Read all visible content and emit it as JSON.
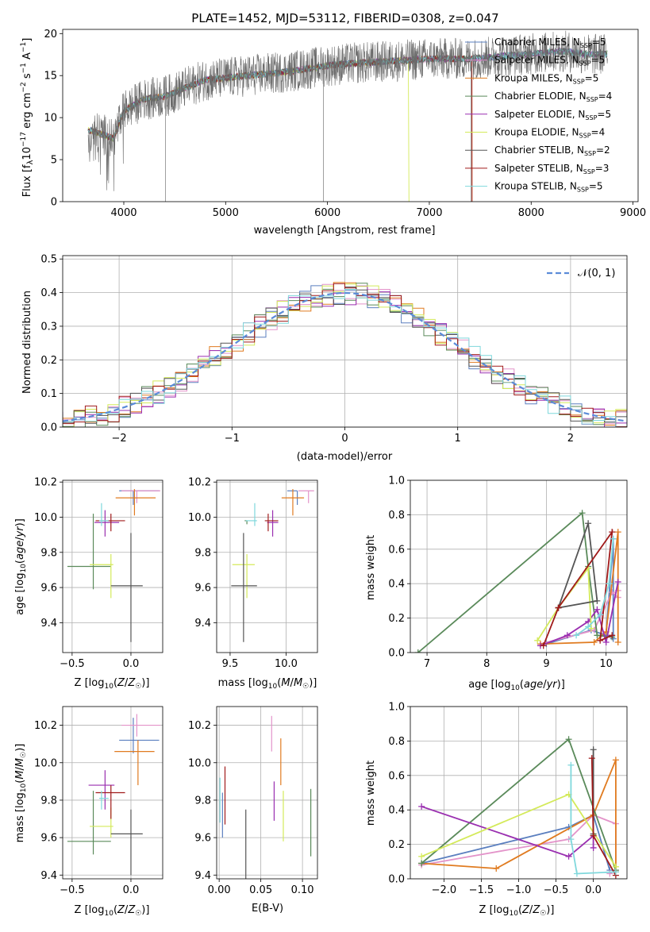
{
  "figure": {
    "title": "PLATE=1452, MJD=53112, FIBERID=0308, z=0.047"
  },
  "colors": {
    "Chabrier MILES": "#5b7fbf",
    "Salpeter MILES": "#e393c9",
    "Kroupa MILES": "#e07b20",
    "Chabrier ELODIE": "#5a8a5a",
    "Salpeter ELODIE": "#9a2fb0",
    "Kroupa ELODIE": "#d4ea5a",
    "Chabrier STELIB": "#555555",
    "Salpeter STELIB": "#a01a1a",
    "Kroupa STELIB": "#7fd8dc",
    "gauss": "#5b8bd8"
  },
  "chart_data": [
    {
      "id": "spectrum",
      "type": "line",
      "xlabel": "wavelength [Angstrom, rest frame]",
      "ylabel": "Flux [f_λ 10^-17 erg cm^-2 s^-1 A^-1]",
      "xlim": [
        3400,
        9050
      ],
      "ylim": [
        0,
        20.5
      ],
      "xticks": [
        4000,
        5000,
        6000,
        7000,
        8000,
        9000
      ],
      "yticks": [
        0,
        5,
        10,
        15,
        20
      ],
      "grid": false,
      "legend_position": "right",
      "legend": [
        {
          "name": "Chabrier MILES",
          "nssp": "5"
        },
        {
          "name": "Salpeter MILES",
          "nssp": "5"
        },
        {
          "name": "Kroupa MILES",
          "nssp": "5"
        },
        {
          "name": "Chabrier ELODIE",
          "nssp": "4"
        },
        {
          "name": "Salpeter ELODIE",
          "nssp": "5"
        },
        {
          "name": "Kroupa ELODIE",
          "nssp": "4"
        },
        {
          "name": "Chabrier STELIB",
          "nssp": "2"
        },
        {
          "name": "Salpeter STELIB",
          "nssp": "3"
        },
        {
          "name": "Kroupa STELIB",
          "nssp": "5"
        }
      ],
      "continuum": [
        [
          3650,
          8.5
        ],
        [
          3800,
          8.0
        ],
        [
          3900,
          7.5
        ],
        [
          4000,
          10.8
        ],
        [
          4200,
          12.2
        ],
        [
          4400,
          12.5
        ],
        [
          4600,
          13.5
        ],
        [
          4800,
          14.5
        ],
        [
          5000,
          14.7
        ],
        [
          5200,
          15.0
        ],
        [
          5500,
          15.3
        ],
        [
          5800,
          15.8
        ],
        [
          6000,
          16.2
        ],
        [
          6300,
          16.5
        ],
        [
          6600,
          16.7
        ],
        [
          7000,
          17.0
        ],
        [
          7300,
          17.0
        ],
        [
          7430,
          17.0
        ],
        [
          7700,
          17.3
        ],
        [
          8000,
          17.6
        ],
        [
          8300,
          17.9
        ],
        [
          8600,
          17.5
        ],
        [
          8750,
          17.6
        ]
      ],
      "observed": {
        "xmin": 3650,
        "xmax": 8750
      },
      "models_end": [
        {
          "series": "Kroupa MILES",
          "x_end": 7420
        },
        {
          "series": "Salpeter STELIB",
          "x_end": 7420
        },
        {
          "series": "Kroupa ELODIE",
          "x_end": 6800
        }
      ]
    },
    {
      "id": "residuals",
      "type": "line",
      "xlabel": "(data-model)/error",
      "ylabel": "Normed distribution",
      "xlim": [
        -2.5,
        2.5
      ],
      "ylim": [
        0,
        0.51
      ],
      "xticks": [
        -2,
        -1,
        0,
        1,
        2
      ],
      "yticks": [
        0.0,
        0.1,
        0.2,
        0.3,
        0.4,
        0.5
      ],
      "grid": true,
      "legend_position": "top-right",
      "gauss_label": "𝒩(0, 1)",
      "bin_width": 0.1
    },
    {
      "id": "age-vs-Z",
      "type": "scatter",
      "xlabel": "Z [log10(Z/Z☉)]",
      "ylabel": "age  [log10(age/yr)]",
      "xlim": [
        -0.58,
        0.27
      ],
      "ylim": [
        9.23,
        10.21
      ],
      "xticks": [
        -0.5,
        0.0
      ],
      "yticks": [
        9.4,
        9.6,
        9.8,
        10.0,
        10.2
      ],
      "grid": true,
      "points": [
        {
          "series": "Chabrier MILES",
          "x": 0.02,
          "xerr": [
            0.12,
            0.22
          ],
          "y": 10.15,
          "yerr": [
            0.08,
            0.0
          ]
        },
        {
          "series": "Salpeter MILES",
          "x": 0.05,
          "xerr": [
            0.13,
            0.2
          ],
          "y": 10.15,
          "yerr": [
            0.07,
            0.0
          ]
        },
        {
          "series": "Kroupa MILES",
          "x": 0.03,
          "xerr": [
            0.16,
            0.18
          ],
          "y": 10.11,
          "yerr": [
            0.1,
            0.05
          ]
        },
        {
          "series": "Chabrier ELODIE",
          "x": -0.32,
          "xerr": [
            0.22,
            0.15
          ],
          "y": 9.72,
          "yerr": [
            0.13,
            0.3
          ]
        },
        {
          "series": "Salpeter ELODIE",
          "x": -0.22,
          "xerr": [
            0.09,
            0.12
          ],
          "y": 9.97,
          "yerr": [
            0.08,
            0.07
          ]
        },
        {
          "series": "Kroupa ELODIE",
          "x": -0.17,
          "xerr": [
            0.18,
            0.02
          ],
          "y": 9.73,
          "yerr": [
            0.19,
            0.06
          ]
        },
        {
          "series": "Chabrier STELIB",
          "x": 0.0,
          "xerr": [
            0.17,
            0.1
          ],
          "y": 9.61,
          "yerr": [
            0.32,
            0.3
          ]
        },
        {
          "series": "Salpeter STELIB",
          "x": -0.17,
          "xerr": [
            0.13,
            0.12
          ],
          "y": 9.98,
          "yerr": [
            0.06,
            0.04
          ]
        },
        {
          "series": "Kroupa STELIB",
          "x": -0.25,
          "xerr": [
            0.02,
            0.06
          ],
          "y": 9.98,
          "yerr": [
            0.03,
            0.1
          ]
        }
      ]
    },
    {
      "id": "age-vs-mass",
      "type": "scatter",
      "xlabel": "mass [log10(M/M☉)]",
      "ylabel": "",
      "xlim": [
        9.38,
        10.28
      ],
      "ylim": [
        9.23,
        10.21
      ],
      "xticks": [
        9.5,
        10.0
      ],
      "yticks": [
        9.4,
        9.6,
        9.8,
        10.0,
        10.2
      ],
      "grid": true,
      "points": [
        {
          "series": "Chabrier MILES",
          "x": 10.1,
          "xerr": [
            0.09,
            0.0
          ],
          "y": 10.15,
          "yerr": [
            0.08,
            0.0
          ]
        },
        {
          "series": "Salpeter MILES",
          "x": 10.2,
          "xerr": [
            0.09,
            0.05
          ],
          "y": 10.15,
          "yerr": [
            0.07,
            0.0
          ]
        },
        {
          "series": "Kroupa MILES",
          "x": 10.06,
          "xerr": [
            0.1,
            0.1
          ],
          "y": 10.11,
          "yerr": [
            0.1,
            0.05
          ]
        },
        {
          "series": "Chabrier ELODIE",
          "x": 9.65,
          "xerr": [
            0.02,
            0.0
          ],
          "y": 9.98,
          "yerr": [
            0.02,
            0.0
          ]
        },
        {
          "series": "Salpeter ELODIE",
          "x": 9.88,
          "xerr": [
            0.05,
            0.05
          ],
          "y": 9.97,
          "yerr": [
            0.08,
            0.07
          ]
        },
        {
          "series": "Kroupa ELODIE",
          "x": 9.65,
          "xerr": [
            0.13,
            0.07
          ],
          "y": 9.73,
          "yerr": [
            0.19,
            0.06
          ]
        },
        {
          "series": "Chabrier STELIB",
          "x": 9.62,
          "xerr": [
            0.11,
            0.12
          ],
          "y": 9.61,
          "yerr": [
            0.32,
            0.3
          ]
        },
        {
          "series": "Salpeter STELIB",
          "x": 9.84,
          "xerr": [
            0.03,
            0.09
          ],
          "y": 9.98,
          "yerr": [
            0.06,
            0.04
          ]
        },
        {
          "series": "Kroupa STELIB",
          "x": 9.72,
          "xerr": [
            0.08,
            0.02
          ],
          "y": 9.98,
          "yerr": [
            0.03,
            0.1
          ]
        }
      ]
    },
    {
      "id": "mass-weight-vs-age",
      "type": "line",
      "xlabel": "age  [log10(age/yr)]",
      "ylabel": "mass weight",
      "xlim": [
        6.72,
        10.35
      ],
      "ylim": [
        0,
        1.0
      ],
      "xticks": [
        7,
        8,
        9,
        10
      ],
      "yticks": [
        0.0,
        0.2,
        0.4,
        0.6,
        0.8,
        1.0
      ],
      "grid": true,
      "series": [
        {
          "name": "Chabrier MILES",
          "x": [
            9.0,
            9.75,
            10.0,
            10.12,
            10.12
          ],
          "y": [
            0.05,
            0.13,
            0.1,
            0.66,
            0.08
          ]
        },
        {
          "name": "Salpeter MILES",
          "x": [
            8.9,
            9.8,
            10.1,
            10.2,
            10.2
          ],
          "y": [
            0.05,
            0.13,
            0.35,
            0.32,
            0.36
          ]
        },
        {
          "name": "Kroupa MILES",
          "x": [
            8.9,
            9.8,
            10.0,
            10.2,
            10.2
          ],
          "y": [
            0.05,
            0.06,
            0.12,
            0.7,
            0.06
          ]
        },
        {
          "name": "Chabrier ELODIE",
          "x": [
            6.85,
            9.6,
            9.7,
            9.85,
            10.1
          ],
          "y": [
            0.0,
            0.81,
            0.5,
            0.1,
            0.09
          ]
        },
        {
          "name": "Salpeter ELODIE",
          "x": [
            8.9,
            9.35,
            9.7,
            9.85,
            10.0,
            10.2
          ],
          "y": [
            0.04,
            0.1,
            0.18,
            0.25,
            0.06,
            0.41
          ]
        },
        {
          "name": "Kroupa ELODIE",
          "x": [
            8.85,
            9.2,
            9.7,
            9.75
          ],
          "y": [
            0.07,
            0.26,
            0.49,
            0.14
          ]
        },
        {
          "name": "Chabrier STELIB",
          "x": [
            9.2,
            9.7,
            9.85,
            9.2
          ],
          "y": [
            0.26,
            0.75,
            0.3,
            0.26
          ]
        },
        {
          "name": "Salpeter STELIB",
          "x": [
            8.95,
            9.2,
            10.1,
            9.9,
            10.1
          ],
          "y": [
            0.04,
            0.26,
            0.7,
            0.07,
            0.1
          ]
        },
        {
          "name": "Kroupa STELIB",
          "x": [
            9.5,
            9.7,
            9.9,
            10.05,
            10.12
          ],
          "y": [
            0.1,
            0.15,
            0.22,
            0.4,
            0.66
          ]
        }
      ]
    },
    {
      "id": "mass-vs-Z",
      "type": "scatter",
      "xlabel": "Z [log10(Z/Z☉)]",
      "ylabel": "mass [log10(M/M☉)]",
      "xlim": [
        -0.58,
        0.27
      ],
      "ylim": [
        9.38,
        10.3
      ],
      "xticks": [
        -0.5,
        0.0
      ],
      "yticks": [
        9.4,
        9.6,
        9.8,
        10.0,
        10.2
      ],
      "grid": true,
      "points": [
        {
          "series": "Chabrier MILES",
          "x": 0.02,
          "xerr": [
            0.12,
            0.22
          ],
          "y": 10.12,
          "yerr": [
            0.07,
            0.12
          ]
        },
        {
          "series": "Salpeter MILES",
          "x": 0.05,
          "xerr": [
            0.13,
            0.2
          ],
          "y": 10.2,
          "yerr": [
            0.06,
            0.06
          ]
        },
        {
          "series": "Kroupa MILES",
          "x": 0.06,
          "xerr": [
            0.2,
            0.14
          ],
          "y": 10.06,
          "yerr": [
            0.18,
            0.06
          ]
        },
        {
          "series": "Chabrier ELODIE",
          "x": -0.32,
          "xerr": [
            0.22,
            0.15
          ],
          "y": 9.58,
          "yerr": [
            0.07,
            0.27
          ]
        },
        {
          "series": "Salpeter ELODIE",
          "x": -0.22,
          "xerr": [
            0.14,
            0.08
          ],
          "y": 9.88,
          "yerr": [
            0.13,
            0.08
          ]
        },
        {
          "series": "Kroupa ELODIE",
          "x": -0.17,
          "xerr": [
            0.18,
            0.02
          ],
          "y": 9.66,
          "yerr": [
            0.06,
            0.1
          ]
        },
        {
          "series": "Chabrier STELIB",
          "x": 0.0,
          "xerr": [
            0.17,
            0.1
          ],
          "y": 9.62,
          "yerr": [
            0.22,
            0.13
          ]
        },
        {
          "series": "Salpeter STELIB",
          "x": -0.17,
          "xerr": [
            0.13,
            0.12
          ],
          "y": 9.84,
          "yerr": [
            0.14,
            0.04
          ]
        },
        {
          "series": "Kroupa STELIB",
          "x": -0.25,
          "xerr": [
            0.02,
            0.06
          ],
          "y": 9.81,
          "yerr": [
            0.06,
            0.04
          ]
        }
      ]
    },
    {
      "id": "mass-vs-EBV",
      "type": "scatter",
      "xlabel": "E(B-V)",
      "ylabel": "",
      "xlim": [
        -0.003,
        0.118
      ],
      "ylim": [
        9.38,
        10.3
      ],
      "xticks": [
        0.0,
        0.05,
        0.1
      ],
      "yticks": [
        9.4,
        9.6,
        9.8,
        10.0,
        10.2
      ],
      "grid": true,
      "points": [
        {
          "series": "Chabrier MILES",
          "x": 0.004,
          "y": 9.72,
          "yerr": [
            0.12,
            0.12
          ]
        },
        {
          "series": "Salpeter MILES",
          "x": 0.063,
          "y": 10.12,
          "yerr": [
            0.06,
            0.13
          ]
        },
        {
          "series": "Kroupa MILES",
          "x": 0.074,
          "y": 10.01,
          "yerr": [
            0.13,
            0.12
          ]
        },
        {
          "series": "Chabrier ELODIE",
          "x": 0.11,
          "y": 9.67,
          "yerr": [
            0.17,
            0.19
          ]
        },
        {
          "series": "Salpeter ELODIE",
          "x": 0.066,
          "y": 9.8,
          "yerr": [
            0.11,
            0.1
          ]
        },
        {
          "series": "Kroupa ELODIE",
          "x": 0.077,
          "y": 9.72,
          "yerr": [
            0.14,
            0.13
          ]
        },
        {
          "series": "Chabrier STELIB",
          "x": 0.032,
          "y": 9.52,
          "yerr": [
            0.16,
            0.23
          ]
        },
        {
          "series": "Salpeter STELIB",
          "x": 0.007,
          "y": 9.83,
          "yerr": [
            0.16,
            0.15
          ]
        },
        {
          "series": "Kroupa STELIB",
          "x": 0.001,
          "y": 9.8,
          "yerr": [
            0.12,
            0.12
          ]
        }
      ]
    },
    {
      "id": "mass-weight-vs-Z",
      "type": "line",
      "xlabel": "Z [log10(Z/Z☉)]",
      "ylabel": "mass weight",
      "xlim": [
        -2.45,
        0.45
      ],
      "ylim": [
        0,
        1.0
      ],
      "xticks": [
        -2.0,
        -1.5,
        -1.0,
        -0.5,
        0.0
      ],
      "yticks": [
        0.0,
        0.2,
        0.4,
        0.6,
        0.8,
        1.0
      ],
      "grid": true,
      "series": [
        {
          "name": "Chabrier MILES",
          "x": [
            -2.3,
            -0.33,
            0.0,
            0.22
          ],
          "y": [
            0.09,
            0.3,
            0.37,
            0.05
          ]
        },
        {
          "name": "Salpeter MILES",
          "x": [
            -2.3,
            -0.33,
            0.0,
            0.3,
            0.3,
            0.22
          ],
          "y": [
            0.08,
            0.23,
            0.37,
            0.32,
            0.05,
            0.03
          ]
        },
        {
          "name": "Kroupa MILES",
          "x": [
            -2.3,
            -1.3,
            0.0,
            0.3,
            0.3
          ],
          "y": [
            0.09,
            0.06,
            0.37,
            0.69,
            0.04
          ]
        },
        {
          "name": "Chabrier ELODIE",
          "x": [
            -2.3,
            -0.33,
            0.3
          ],
          "y": [
            0.09,
            0.81,
            0.05
          ]
        },
        {
          "name": "Salpeter ELODIE",
          "x": [
            -2.3,
            -0.33,
            0.0,
            0.0
          ],
          "y": [
            0.42,
            0.13,
            0.25,
            0.18
          ]
        },
        {
          "name": "Kroupa ELODIE",
          "x": [
            -2.3,
            -0.33,
            0.3
          ],
          "y": [
            0.13,
            0.49,
            0.07
          ]
        },
        {
          "name": "Chabrier STELIB",
          "x": [
            0.0,
            0.0
          ],
          "y": [
            0.75,
            0.26
          ]
        },
        {
          "name": "Salpeter STELIB",
          "x": [
            -0.02,
            0.0,
            0.3
          ],
          "y": [
            0.7,
            0.25,
            0.02
          ]
        },
        {
          "name": "Kroupa STELIB",
          "x": [
            -0.3,
            -0.3,
            -0.22,
            0.3
          ],
          "y": [
            0.66,
            0.23,
            0.03,
            0.04
          ]
        }
      ]
    }
  ]
}
